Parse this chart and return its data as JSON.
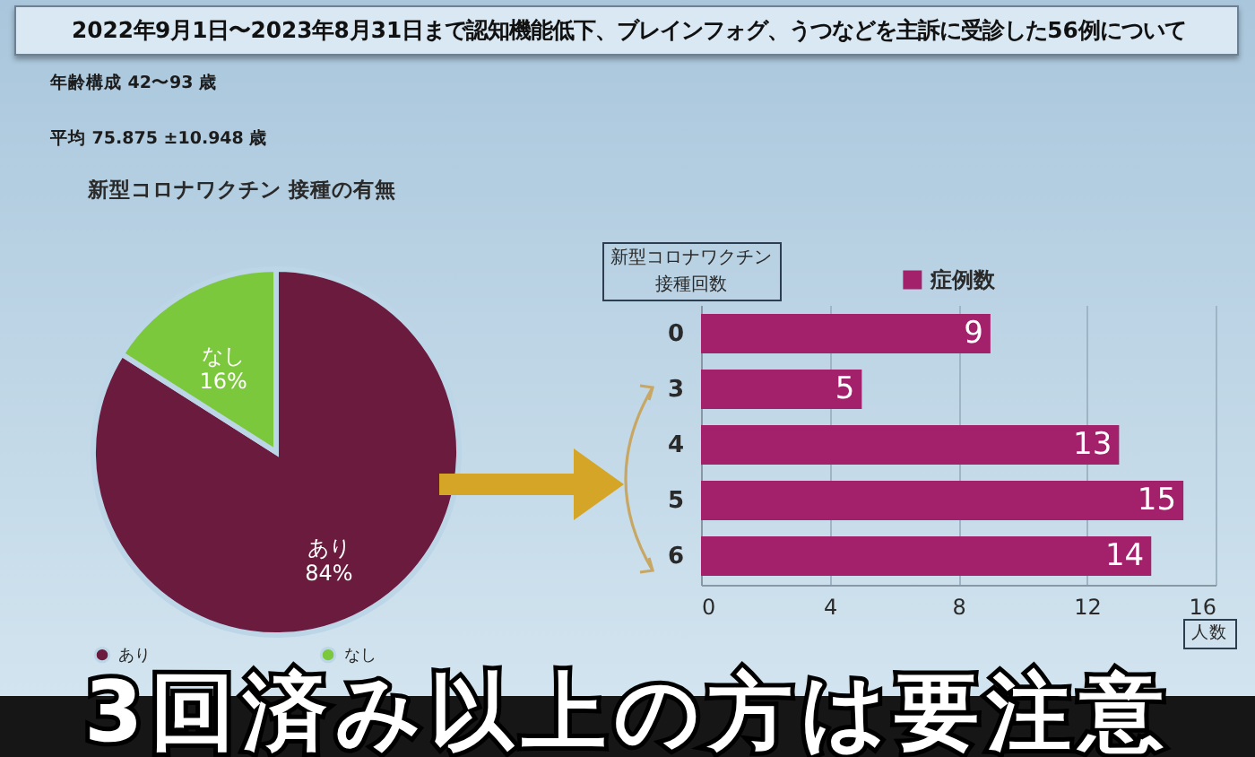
{
  "chart_data": [
    {
      "type": "pie",
      "title": "新型コロナワクチン 接種の有無",
      "categories": [
        "あり",
        "なし"
      ],
      "values": [
        84,
        16
      ],
      "colors": [
        "#6b1b3d",
        "#7cc83c"
      ],
      "value_labels": [
        "84%",
        "16%"
      ],
      "legend": "bottom",
      "annotations": [
        "2022年9月1日〜2023年8月31日まで認知機能低下、ブレインフォグ、うつなどを主訴に受診した56例について",
        "年齢構成 42〜93 歳",
        "平均 75.875 ±10.948 歳",
        "3回済み以上の方は要注意"
      ]
    },
    {
      "type": "bar",
      "orientation": "horizontal",
      "categories": [
        "0",
        "3",
        "4",
        "5",
        "6"
      ],
      "series": [
        {
          "name": "症例数",
          "color": "#a3206b",
          "values": [
            9,
            5,
            13,
            15,
            14
          ]
        }
      ],
      "xlim": [
        0,
        16
      ],
      "xticks": [
        0,
        4,
        8,
        12,
        16
      ],
      "xlabel": "人数",
      "ylabel": "新型コロナワクチン接種回数",
      "data_labels": true,
      "grid": "x",
      "legend": "top"
    }
  ]
}
